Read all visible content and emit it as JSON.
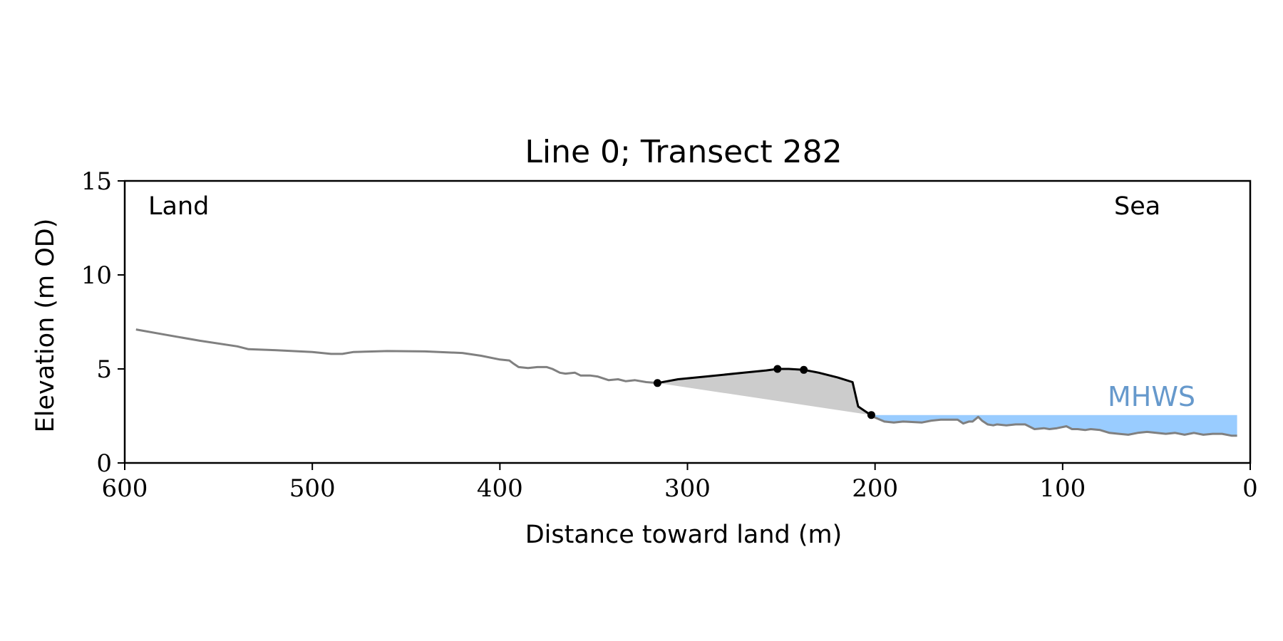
{
  "chart_data": {
    "type": "area",
    "title": "Line 0; Transect 282",
    "xlabel": "Distance toward land (m)",
    "ylabel": "Elevation (m OD)",
    "xlim": [
      600,
      0
    ],
    "ylim": [
      0,
      15
    ],
    "xticks": [
      600,
      500,
      400,
      300,
      200,
      100,
      0
    ],
    "yticks": [
      0,
      5,
      10,
      15
    ],
    "grid": false,
    "legend": "none",
    "annotations": {
      "land": "Land",
      "sea": "Sea",
      "mhws": "MHWS"
    },
    "mhws_level": 2.55,
    "mhws_x_range": [
      202,
      7
    ],
    "colors": {
      "profile": "#808080",
      "dune": "#000000",
      "dune_fill": "#cccccc",
      "water": "#99ccff",
      "mhws_text": "#6699cc"
    },
    "profile": {
      "x": [
        594,
        580,
        560,
        540,
        534,
        520,
        500,
        490,
        484,
        478,
        460,
        440,
        420,
        410,
        400,
        395,
        393,
        390,
        385,
        380,
        375,
        372,
        368,
        365,
        360,
        357,
        352,
        348,
        342,
        337,
        333,
        328,
        322,
        316
      ],
      "y": [
        7.1,
        6.85,
        6.5,
        6.2,
        6.05,
        6.0,
        5.9,
        5.8,
        5.8,
        5.9,
        5.95,
        5.93,
        5.85,
        5.7,
        5.5,
        5.45,
        5.3,
        5.1,
        5.05,
        5.1,
        5.1,
        5.0,
        4.8,
        4.75,
        4.8,
        4.65,
        4.65,
        4.6,
        4.4,
        4.45,
        4.35,
        4.4,
        4.3,
        4.25
      ]
    },
    "dune": {
      "x": [
        316,
        305,
        290,
        270,
        258,
        252,
        246,
        238,
        230,
        220,
        212,
        209,
        206,
        203,
        202
      ],
      "y": [
        4.25,
        4.45,
        4.6,
        4.8,
        4.92,
        5.0,
        5.0,
        4.95,
        4.8,
        4.55,
        4.3,
        3.0,
        2.8,
        2.6,
        2.55
      ],
      "markers": [
        {
          "x": 316,
          "y": 4.25
        },
        {
          "x": 252,
          "y": 5.0
        },
        {
          "x": 238,
          "y": 4.95
        },
        {
          "x": 202,
          "y": 2.55
        }
      ]
    },
    "nearshore": {
      "x": [
        202,
        195,
        190,
        185,
        175,
        170,
        165,
        160,
        156,
        153,
        150,
        148,
        145,
        143,
        140,
        137,
        135,
        130,
        125,
        120,
        115,
        110,
        107,
        103,
        98,
        95,
        92,
        88,
        85,
        80,
        75,
        70,
        65,
        60,
        55,
        50,
        45,
        40,
        35,
        30,
        25,
        20,
        15,
        10,
        7
      ],
      "y": [
        2.5,
        2.2,
        2.15,
        2.2,
        2.15,
        2.25,
        2.3,
        2.3,
        2.3,
        2.1,
        2.2,
        2.2,
        2.45,
        2.25,
        2.05,
        2.0,
        2.05,
        2.0,
        2.05,
        2.05,
        1.8,
        1.85,
        1.8,
        1.85,
        1.95,
        1.8,
        1.8,
        1.75,
        1.8,
        1.75,
        1.6,
        1.55,
        1.5,
        1.6,
        1.65,
        1.6,
        1.55,
        1.6,
        1.5,
        1.6,
        1.5,
        1.55,
        1.55,
        1.45,
        1.45
      ]
    }
  }
}
